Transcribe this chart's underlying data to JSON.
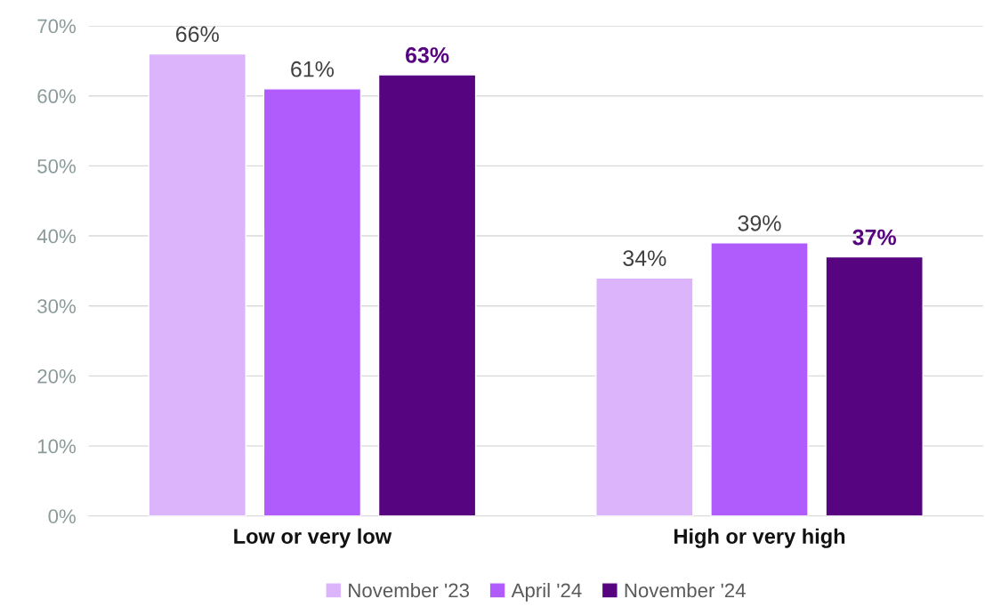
{
  "chart_data": {
    "type": "bar",
    "categories": [
      "Low or very low",
      "High or very high"
    ],
    "series": [
      {
        "name": "November '23",
        "color": "#dcb4fc",
        "values": [
          66,
          34
        ],
        "value_labels": [
          "66%",
          "34%"
        ]
      },
      {
        "name": "April '24",
        "color": "#b05cfc",
        "values": [
          61,
          39
        ],
        "value_labels": [
          "61%",
          "39%"
        ]
      },
      {
        "name": "November '24",
        "color": "#560480",
        "values": [
          63,
          37
        ],
        "value_labels": [
          "63%",
          "37%"
        ]
      }
    ],
    "ylim": [
      0,
      70
    ],
    "yticks": [
      {
        "value": 0,
        "label": "0%"
      },
      {
        "value": 10,
        "label": "10%"
      },
      {
        "value": 20,
        "label": "20%"
      },
      {
        "value": 30,
        "label": "30%"
      },
      {
        "value": 40,
        "label": "40%"
      },
      {
        "value": 50,
        "label": "50%"
      },
      {
        "value": 60,
        "label": "60%"
      },
      {
        "value": 70,
        "label": "70%"
      }
    ],
    "grid": "y",
    "legend": "bottom"
  }
}
